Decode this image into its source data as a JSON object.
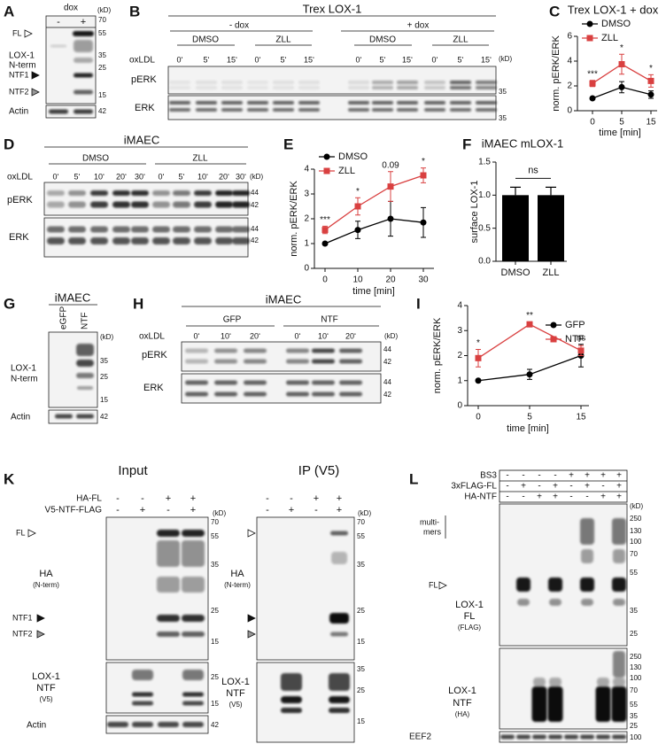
{
  "chart_data": [
    {
      "type": "line",
      "letter": "C",
      "title": "Trex LOX-1 + dox",
      "categories": [
        "0",
        "5",
        "15"
      ],
      "series": [
        {
          "name": "DMSO",
          "color": "#000000",
          "marker": "circle",
          "values": [
            1.0,
            1.9,
            1.3
          ],
          "errors": [
            0.05,
            0.45,
            0.3
          ]
        },
        {
          "name": "ZLL",
          "color": "#d94040",
          "marker": "square",
          "values": [
            2.2,
            3.75,
            2.4
          ],
          "errors": [
            0.25,
            0.8,
            0.5
          ]
        }
      ],
      "ylim": [
        0,
        6
      ],
      "yticks": [
        0,
        2,
        4,
        6
      ],
      "xlabel": "time [min]",
      "ylabel": "norm. pERK/ERK",
      "legend": "upper left",
      "annotations": [
        "***",
        "*",
        "*"
      ]
    },
    {
      "type": "line",
      "letter": "E",
      "categories": [
        "0",
        "10",
        "20",
        "30"
      ],
      "series": [
        {
          "name": "DMSO",
          "color": "#000000",
          "marker": "circle",
          "values": [
            1.0,
            1.55,
            2.0,
            1.85
          ],
          "errors": [
            0.05,
            0.35,
            0.7,
            0.6
          ]
        },
        {
          "name": "ZLL",
          "color": "#d94040",
          "marker": "square",
          "values": [
            1.55,
            2.5,
            3.3,
            3.75
          ],
          "errors": [
            0.15,
            0.35,
            0.6,
            0.3
          ]
        }
      ],
      "ylim": [
        0,
        4
      ],
      "yticks": [
        0,
        1,
        2,
        3,
        4
      ],
      "xlabel": "time [min]",
      "ylabel": "norm. pERK/ERK",
      "legend": "upper left",
      "annotations": [
        "***",
        "*",
        "0.09",
        "*"
      ]
    },
    {
      "type": "bar",
      "letter": "F",
      "title": "iMAEC mLOX-1",
      "categories": [
        "DMSO",
        "ZLL"
      ],
      "values": [
        1.0,
        1.0
      ],
      "errors": [
        0.12,
        0.12
      ],
      "color": "#000000",
      "ylim": [
        0,
        1.5
      ],
      "yticks": [
        {
          "value": 0,
          "label": "0.0"
        },
        0.5,
        {
          "value": 1,
          "label": "1.0"
        },
        1.5
      ],
      "ylabel": "surface LOX-1",
      "annotation": "ns"
    },
    {
      "type": "line",
      "letter": "I",
      "categories": [
        "0",
        "5",
        "15"
      ],
      "series": [
        {
          "name": "GFP",
          "color": "#000000",
          "marker": "circle",
          "values": [
            1.0,
            1.25,
            2.0
          ],
          "errors": [
            0.05,
            0.2,
            0.45
          ]
        },
        {
          "name": "NTF",
          "color": "#d94040",
          "marker": "square",
          "values": [
            1.9,
            3.25,
            2.2
          ],
          "errors": [
            0.35,
            0.1,
            0.2
          ]
        }
      ],
      "ylim": [
        0,
        4
      ],
      "yticks": [
        0,
        1,
        2,
        3,
        4
      ],
      "xlabel": "time [min]",
      "ylabel": "norm. pERK/ERK",
      "legend": "upper right",
      "annotations": [
        "*",
        "**",
        "ns"
      ]
    }
  ],
  "panels": {
    "A": {
      "letter": "A",
      "treatment": "dox",
      "signs": [
        "-",
        "+"
      ],
      "unit": "(kD)",
      "FL": "FL",
      "protein": [
        "LOX-1",
        "N-term"
      ],
      "NTF1": "NTF1",
      "NTF2": "NTF2",
      "loading": "Actin",
      "markers": [
        "70",
        "55",
        "35",
        "25",
        "15"
      ],
      "loading_marker": "42"
    },
    "B": {
      "letter": "B",
      "title": "Trex LOX-1",
      "groups": [
        "- dox",
        "+ dox"
      ],
      "treatments": [
        "DMSO",
        "ZLL"
      ],
      "stimulus": "oxLDL",
      "times": [
        "0‘",
        "5‘",
        "15‘"
      ],
      "unit": "(kD)",
      "rows": [
        "pERK",
        "ERK"
      ],
      "markers": [
        "35",
        "35"
      ]
    },
    "D": {
      "letter": "D",
      "title": "iMAEC",
      "treatments": [
        "DMSO",
        "ZLL"
      ],
      "stimulus": "oxLDL",
      "times": [
        "0‘",
        "5‘",
        "10‘",
        "20‘",
        "30‘"
      ],
      "unit": "(kD)",
      "rows": [
        "pERK",
        "ERK"
      ],
      "markers": [
        "44",
        "42"
      ]
    },
    "G": {
      "letter": "G",
      "title": "iMAEC",
      "lanes": [
        "eGFP",
        "NTF"
      ],
      "unit": "(kD)",
      "protein": [
        "LOX-1",
        "N-term"
      ],
      "loading": "Actin",
      "markers": [
        "35",
        "25",
        "15"
      ],
      "loading_marker": "42"
    },
    "H": {
      "letter": "H",
      "title": "iMAEC",
      "treatments": [
        "GFP",
        "NTF"
      ],
      "stimulus": "oxLDL",
      "times": [
        "0‘",
        "10‘",
        "20‘"
      ],
      "unit": "(kD)",
      "rows": [
        "pERK",
        "ERK"
      ],
      "markers": [
        "44",
        "42"
      ]
    },
    "K": {
      "letter": "K",
      "input": "Input",
      "ip": "IP (V5)",
      "constructs": [
        "HA-FL",
        "V5-NTF-FLAG"
      ],
      "signs": [
        [
          "-",
          "-",
          "+",
          "+"
        ],
        [
          "-",
          "+",
          "-",
          "+"
        ]
      ],
      "unit": "(kD)",
      "FL": "FL",
      "ha": [
        "HA",
        "(N-term)"
      ],
      "NTF1": "NTF1",
      "NTF2": "NTF2",
      "v5": [
        "LOX-1",
        "NTF",
        "(V5)"
      ],
      "loading": "Actin",
      "ha_markers": [
        "70",
        "55",
        "35",
        "25",
        "15"
      ],
      "input_v5_markers": [
        "25",
        "15"
      ],
      "ip_v5_markers": [
        "35",
        "25",
        "15"
      ],
      "loading_marker": "42"
    },
    "L": {
      "letter": "L",
      "constructs": [
        "BS3",
        "3xFLAG-FL",
        "HA-NTF"
      ],
      "signs": [
        [
          "-",
          "-",
          "-",
          "-",
          "+",
          "+",
          "+",
          "+"
        ],
        [
          "-",
          "+",
          "-",
          "+",
          "-",
          "+",
          "-",
          "+"
        ],
        [
          "-",
          "-",
          "+",
          "+",
          "-",
          "-",
          "+",
          "+"
        ]
      ],
      "unit": "(kD)",
      "multimers": [
        "multi-",
        "mers"
      ],
      "FL": "FL",
      "flag": [
        "LOX-1",
        "FL",
        "(FLAG)"
      ],
      "ha": [
        "LOX-1",
        "NTF",
        "(HA)"
      ],
      "loading": "EEF2",
      "markers": [
        "250",
        "130",
        "100",
        "70",
        "55",
        "35",
        "25"
      ],
      "loading_marker": "100"
    }
  }
}
